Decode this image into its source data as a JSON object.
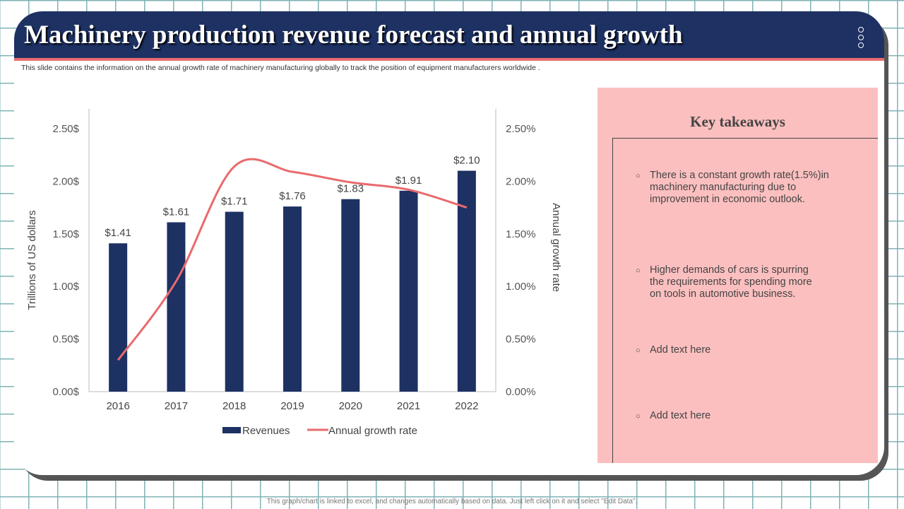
{
  "header": {
    "title": "Machinery production revenue forecast and annual growth",
    "subtitle": "This slide contains the information on the annual growth rate of machinery manufacturing globally to track the position of equipment manufacturers worldwide ."
  },
  "chart_data": {
    "type": "bar+line",
    "categories": [
      "2016",
      "2017",
      "2018",
      "2019",
      "2020",
      "2021",
      "2022"
    ],
    "series": [
      {
        "name": "Revenues",
        "type": "bar",
        "axis": "left",
        "values": [
          1.41,
          1.61,
          1.71,
          1.76,
          1.83,
          1.91,
          2.1
        ],
        "labels": [
          "$1.41",
          "$1.61",
          "$1.71",
          "$1.76",
          "$1.83",
          "$1.91",
          "$2.10"
        ],
        "color": "#1d3163"
      },
      {
        "name": "Annual growth rate",
        "type": "line",
        "axis": "right",
        "values": [
          0.3,
          1.05,
          2.14,
          2.09,
          1.99,
          1.92,
          1.75
        ],
        "color": "#e96a6d"
      }
    ],
    "ylabel": "Trillions of US dollars",
    "y2label": "Annual growth rate",
    "ylim": [
      0,
      2.5
    ],
    "y2lim": [
      0,
      2.5
    ],
    "yticks": [
      "0.00$",
      "0.50$",
      "1.00$",
      "1.50$",
      "2.00$",
      "2.50$"
    ],
    "y2ticks": [
      "0.00%",
      "0.50%",
      "1.00%",
      "1.50%",
      "2.00%",
      "2.50%"
    ],
    "grid": false,
    "legend": "bottom"
  },
  "takeaways": {
    "title": "Key takeaways",
    "items": [
      "There is a constant growth rate(1.5%)in machinery manufacturing due to improvement in economic outlook.",
      "Higher demands of cars is spurring the requirements for spending more on tools in automotive business.",
      "Add text here",
      "Add text here"
    ]
  },
  "footnote": "This graph/chart is linked to excel, and changes automatically based on data. Just left click on it and select \"Edit Data\"."
}
